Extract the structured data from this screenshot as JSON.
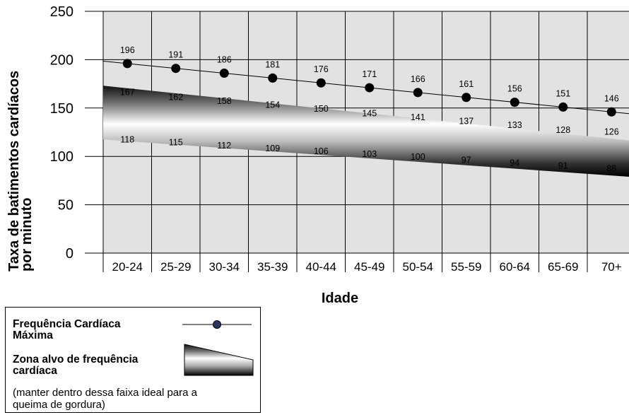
{
  "chart_data": {
    "type": "line",
    "ylabel": "Taxa de batimentos cardíacos por minuto",
    "ylabel_lines": [
      "Taxa de batimentos cardíacos",
      "por minuto"
    ],
    "xlabel": "Idade",
    "ylim": [
      0,
      250
    ],
    "yticks": [
      "0",
      "50",
      "100",
      "150",
      "200",
      "250"
    ],
    "grid": true,
    "categories": [
      "20-24",
      "25-29",
      "30-34",
      "35-39",
      "40-44",
      "45-49",
      "50-54",
      "55-59",
      "60-64",
      "65-69",
      "70+"
    ],
    "series": [
      {
        "name": "Frequência Cardíaca Máxima",
        "kind": "line-markers",
        "color": "#000000",
        "values": [
          196,
          191,
          186,
          181,
          176,
          171,
          166,
          161,
          156,
          151,
          146
        ]
      },
      {
        "name": "Zona alvo de frequência cardíaca",
        "kind": "band",
        "upper": [
          167,
          162,
          158,
          154,
          150,
          145,
          141,
          137,
          133,
          128,
          126
        ],
        "lower": [
          118,
          115,
          112,
          109,
          106,
          103,
          100,
          97,
          94,
          91,
          88
        ]
      }
    ]
  },
  "legend": {
    "max_hr_label": "Frequência Cardíaca Máxima",
    "max_hr_lines": [
      "Frequência Cardíaca",
      "Máxima"
    ],
    "zone_label_lines": [
      "Zona alvo de frequência",
      "cardíaca"
    ],
    "zone_note_lines": [
      "(manter dentro dessa faixa ideal para a",
      "queima de gordura)"
    ],
    "marker_color": "#2d3566"
  }
}
